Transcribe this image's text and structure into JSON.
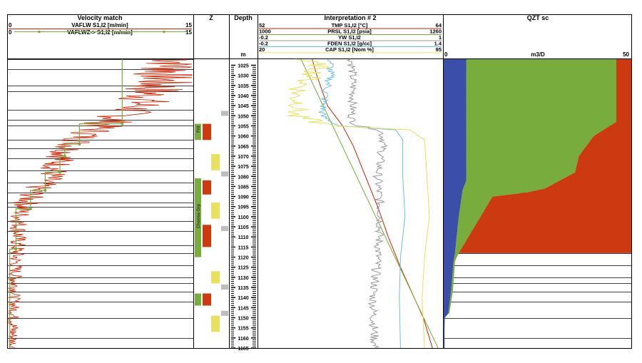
{
  "tracks": {
    "velocity": {
      "title": "Velocity match",
      "curves": [
        {
          "name": "VAFLW  S1,I2 [m/min]",
          "min": "0",
          "max": "15",
          "color": "#cc2200"
        },
        {
          "name": "VAFLWZ->  S1,I2 [m/min]",
          "min": "0",
          "max": "15",
          "color": "#7aaa3a"
        }
      ]
    },
    "zone": {
      "title": "Z",
      "labels": [
        "Frit",
        "Choosa Grp"
      ]
    },
    "depth": {
      "title": "Depth",
      "unit": "m"
    },
    "interp": {
      "title": "Interpretation # 2",
      "curves": [
        {
          "name": "TMP  S1,I2 [°C]",
          "min": "52",
          "max": "64",
          "color": "#cc2200"
        },
        {
          "name": "PRSL  S1,I2 [psia]",
          "min": "1000",
          "max": "1260",
          "color": "#7aaa3a"
        },
        {
          "name": "YW  S1,I2",
          "min": "-0.2",
          "max": "1",
          "color": "#9a9a9a"
        },
        {
          "name": "FDEN  S1,I2 [g/cc]",
          "min": "-0.2",
          "max": "1.4",
          "color": "#6cc0e8"
        },
        {
          "name": "CAP  S1,I2 [Nom %]",
          "min": "20",
          "max": "95",
          "color": "#e8e060"
        }
      ]
    },
    "qzt": {
      "title": "QZT sc",
      "min": "0",
      "unit": "m3/D",
      "max": "50"
    }
  },
  "chart_data": [
    {
      "type": "line",
      "title": "Velocity match",
      "ylabel": "Depth (m)",
      "ylim": [
        1165,
        1022
      ],
      "xlim": [
        0,
        15
      ],
      "series": [
        {
          "name": "VAFLWZ->  S1,I2 [m/min]",
          "color": "#7aaa3a",
          "points": [
            [
              9.3,
              1022
            ],
            [
              9.3,
              1054
            ],
            [
              5.8,
              1054
            ],
            [
              5.8,
              1064
            ],
            [
              4.6,
              1064
            ],
            [
              4.6,
              1070
            ],
            [
              4.2,
              1070
            ],
            [
              4.2,
              1078
            ],
            [
              3.0,
              1078
            ],
            [
              3.0,
              1087
            ],
            [
              1.8,
              1087
            ],
            [
              1.8,
              1096
            ],
            [
              0.6,
              1096
            ],
            [
              0.6,
              1116
            ],
            [
              0.1,
              1116
            ],
            [
              0.1,
              1165
            ]
          ]
        },
        {
          "name": "VAFLW  S1,I2 [m/min]",
          "color": "#cc2200",
          "anchors": [
            [
              1022,
              14.3
            ],
            [
              1030,
              13.0
            ],
            [
              1038,
              11.7
            ],
            [
              1046,
              10.5
            ],
            [
              1054,
              8.0
            ],
            [
              1060,
              6.2
            ],
            [
              1066,
              5.0
            ],
            [
              1072,
              4.2
            ],
            [
              1080,
              3.5
            ],
            [
              1086,
              2.3
            ],
            [
              1094,
              1.3
            ],
            [
              1100,
              0.9
            ],
            [
              1110,
              0.8
            ],
            [
              1120,
              0.6
            ],
            [
              1135,
              0.5
            ],
            [
              1150,
              0.4
            ],
            [
              1165,
              0.3
            ]
          ],
          "noise": [
            3.2,
            2.8,
            2.4,
            2.0,
            1.7,
            1.5,
            1.4,
            1.3,
            1.2,
            1.1,
            0.9,
            0.8,
            0.7,
            0.6,
            0.5,
            0.5,
            0.4
          ]
        }
      ]
    },
    {
      "type": "line",
      "title": "Interpretation # 2",
      "ylim": [
        1165,
        1022
      ],
      "series": [
        {
          "name": "TMP  S1,I2 [°C]",
          "color": "#cc2200",
          "xlim": [
            52,
            64
          ],
          "points": [
            [
              55.5,
              1022
            ],
            [
              55.8,
              1030
            ],
            [
              56.5,
              1045
            ],
            [
              57.5,
              1055
            ],
            [
              58.2,
              1065
            ],
            [
              59.0,
              1080
            ],
            [
              59.8,
              1095
            ],
            [
              60.5,
              1110
            ],
            [
              61.3,
              1125
            ],
            [
              62.2,
              1140
            ],
            [
              62.8,
              1150
            ],
            [
              63.4,
              1165
            ]
          ]
        },
        {
          "name": "PRSL  S1,I2 [psia]",
          "color": "#7aaa3a",
          "xlim": [
            1000,
            1260
          ],
          "points": [
            [
              1060,
              1022
            ],
            [
              1255,
              1165
            ]
          ]
        },
        {
          "name": "YW  S1,I2",
          "color": "#9a9a9a",
          "xlim": [
            -0.2,
            1
          ],
          "points": [
            [
              0.41,
              1022
            ],
            [
              0.42,
              1040
            ],
            [
              0.41,
              1052
            ],
            [
              0.45,
              1055
            ],
            [
              0.6,
              1057
            ],
            [
              0.62,
              1062
            ],
            [
              0.58,
              1080
            ],
            [
              0.6,
              1100
            ],
            [
              0.58,
              1120
            ],
            [
              0.55,
              1140
            ],
            [
              0.56,
              1165
            ]
          ]
        },
        {
          "name": "FDEN  S1,I2 [g/cc]",
          "color": "#6cc0e8",
          "xlim": [
            -0.2,
            1.4
          ],
          "points": [
            [
              0.43,
              1022
            ],
            [
              0.42,
              1032
            ],
            [
              0.38,
              1040
            ],
            [
              0.35,
              1050
            ],
            [
              0.5,
              1055
            ],
            [
              1.0,
              1057
            ],
            [
              1.06,
              1062
            ],
            [
              1.06,
              1080
            ],
            [
              1.08,
              1100
            ],
            [
              1.04,
              1120
            ],
            [
              1.03,
              1140
            ],
            [
              1.04,
              1165
            ]
          ]
        },
        {
          "name": "CAP  S1,I2 [Nom %]",
          "color": "#e8e060",
          "xlim": [
            20,
            95
          ],
          "points": [
            [
              36,
              1022
            ],
            [
              45,
              1025
            ],
            [
              42,
              1030
            ],
            [
              38,
              1035
            ],
            [
              35,
              1040
            ],
            [
              37,
              1045
            ],
            [
              34,
              1050
            ],
            [
              50,
              1055
            ],
            [
              82,
              1057
            ],
            [
              88,
              1062
            ],
            [
              89,
              1080
            ],
            [
              90,
              1100
            ],
            [
              88,
              1120
            ],
            [
              87,
              1140
            ],
            [
              88,
              1165
            ]
          ]
        }
      ]
    },
    {
      "type": "area",
      "title": "QZT sc",
      "xlabel": "m3/D",
      "xlim": [
        0,
        50
      ],
      "ylim": [
        1165,
        1022
      ],
      "series": [
        {
          "name": "blue",
          "color": "#3b4fa8",
          "points": [
            [
              6,
              1022
            ],
            [
              6,
              1082
            ],
            [
              5,
              1087
            ],
            [
              4,
              1100
            ],
            [
              3,
              1118
            ],
            [
              2.6,
              1122
            ],
            [
              2,
              1136
            ],
            [
              1.2,
              1148
            ],
            [
              0.3,
              1150
            ],
            [
              0,
              1165
            ]
          ]
        },
        {
          "name": "green",
          "color": "#78ac3c",
          "points": [
            [
              46,
              1022
            ],
            [
              46,
              1053
            ],
            [
              40,
              1060
            ],
            [
              36,
              1070
            ],
            [
              35,
              1078
            ],
            [
              27,
              1086
            ],
            [
              22,
              1088
            ],
            [
              13,
              1090
            ],
            [
              4,
              1118
            ],
            [
              3,
              1122
            ],
            [
              2.5,
              1136
            ],
            [
              1.5,
              1148
            ]
          ]
        },
        {
          "name": "red",
          "color": "#cc3a12",
          "points": [
            [
              50,
              1022
            ],
            [
              50,
              1118
            ],
            [
              3,
              1118
            ]
          ]
        }
      ]
    }
  ],
  "depth_ticks": [
    1025,
    1030,
    1035,
    1040,
    1045,
    1050,
    1055,
    1060,
    1065,
    1070,
    1075,
    1080,
    1085,
    1090,
    1095,
    1100,
    1105,
    1110,
    1115,
    1120,
    1125,
    1130,
    1135,
    1140,
    1145,
    1150,
    1155,
    1160,
    1165
  ],
  "zones": [
    {
      "top": 1054,
      "bottom": 1062,
      "flag": "red"
    },
    {
      "top": 1069,
      "bottom": 1077,
      "flag": "yellow"
    },
    {
      "top": 1082,
      "bottom": 1089,
      "flag": "red"
    },
    {
      "top": 1093,
      "bottom": 1101,
      "flag": "yellow"
    },
    {
      "top": 1104,
      "bottom": 1115,
      "flag": "red"
    },
    {
      "top": 1127,
      "bottom": 1133,
      "flag": "yellow"
    },
    {
      "top": 1138,
      "bottom": 1144,
      "flag": "red"
    },
    {
      "top": 1149,
      "bottom": 1157,
      "flag": "yellow"
    }
  ],
  "gray_markers": [
    1049,
    1079,
    1106,
    1135,
    1148
  ],
  "hlines": [
    1022,
    1027,
    1035,
    1038,
    1047,
    1052,
    1055,
    1062,
    1066,
    1071,
    1077,
    1083,
    1088,
    1093,
    1095,
    1102,
    1107,
    1114,
    1118,
    1124,
    1130,
    1133,
    1137,
    1142,
    1150,
    1160,
    1165
  ]
}
